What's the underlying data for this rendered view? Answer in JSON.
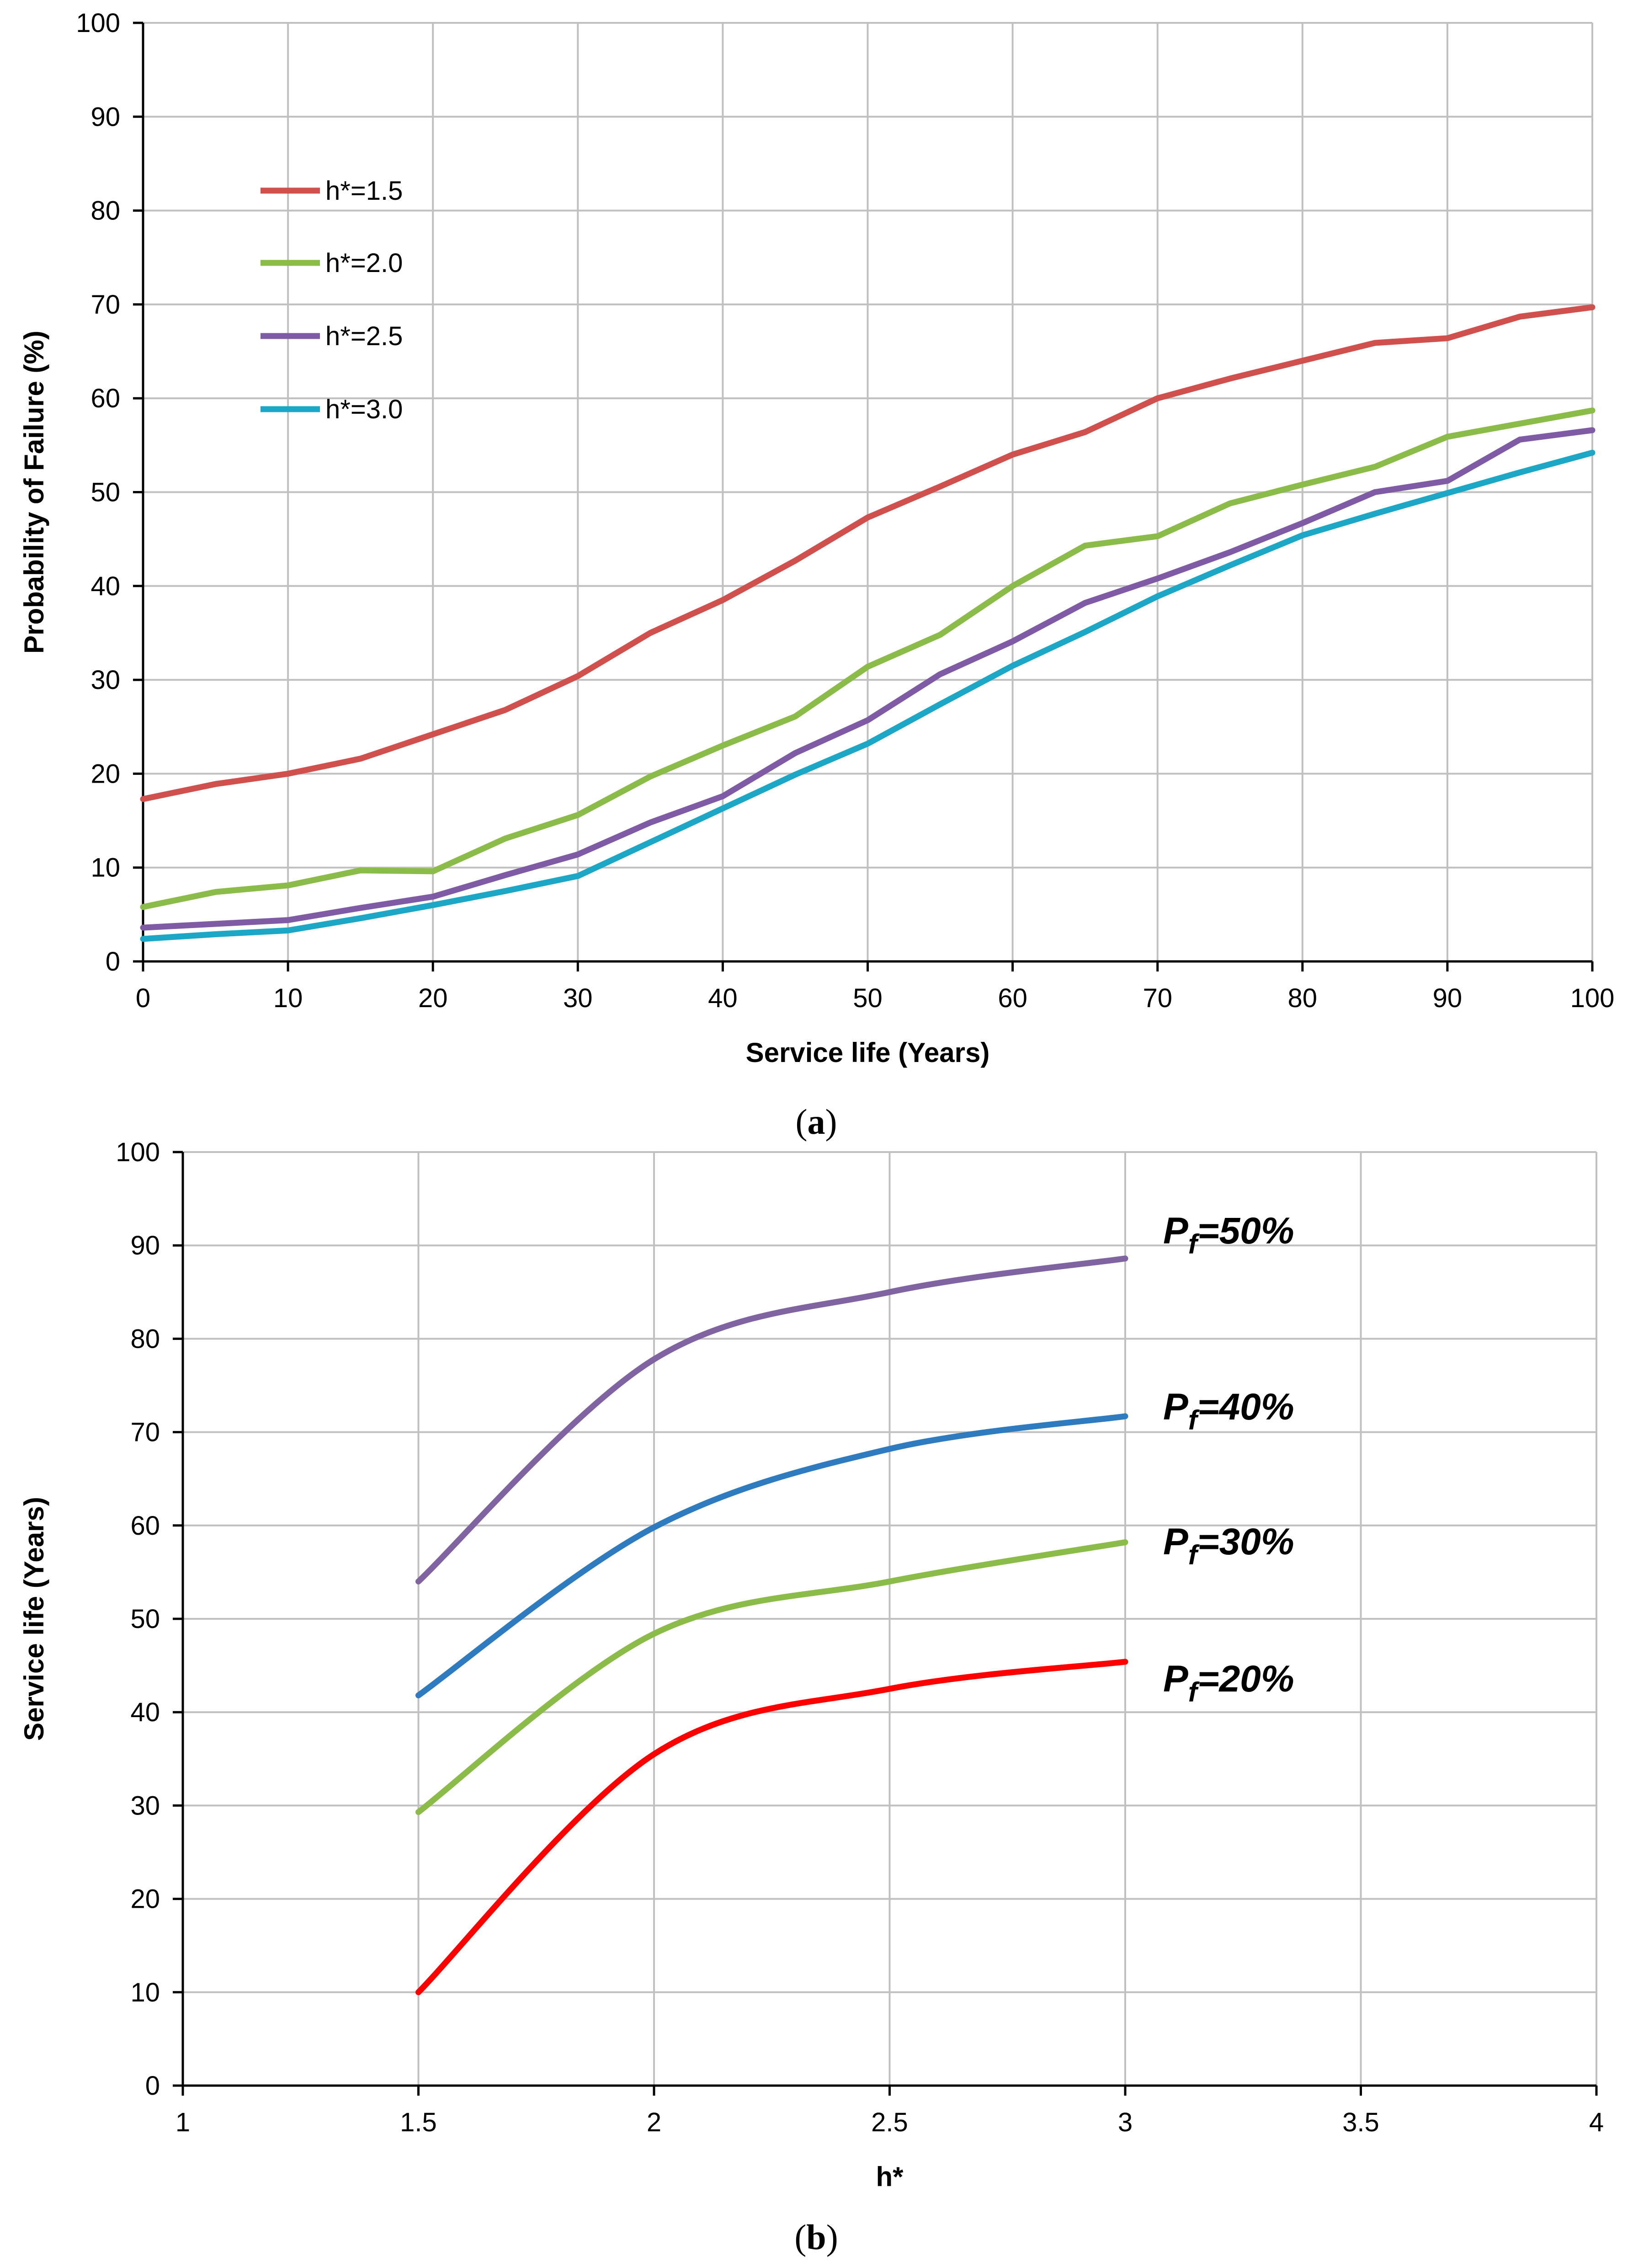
{
  "charts": [
    {
      "id": "a",
      "caption": {
        "open": "(",
        "letter": "a",
        "close": ")"
      },
      "chart_data": {
        "type": "line",
        "title": "",
        "xlabel": "Service life (Years)",
        "ylabel": "Probability of Failure (%)",
        "xlim": [
          0,
          100
        ],
        "ylim": [
          0,
          100
        ],
        "x_ticks": [
          0,
          10,
          20,
          30,
          40,
          50,
          60,
          70,
          80,
          90,
          100
        ],
        "y_ticks": [
          0,
          10,
          20,
          30,
          40,
          50,
          60,
          70,
          80,
          90,
          100
        ],
        "grid": true,
        "legend_position": "top-left",
        "x": [
          0,
          5,
          10,
          15,
          20,
          25,
          30,
          35,
          40,
          45,
          50,
          55,
          60,
          65,
          70,
          75,
          80,
          85,
          90,
          95,
          100
        ],
        "series": [
          {
            "name": "h*=1.5",
            "color": "#d0504d",
            "values": [
              17.3,
              18.9,
              20.0,
              21.6,
              24.2,
              26.8,
              30.4,
              35.0,
              38.5,
              42.7,
              47.3,
              50.6,
              54.0,
              56.4,
              60.0,
              62.1,
              64.0,
              65.9,
              66.4,
              68.7,
              69.7
            ]
          },
          {
            "name": "h*=2.0",
            "color": "#8bbb48",
            "values": [
              5.8,
              7.4,
              8.1,
              9.7,
              9.6,
              13.1,
              15.6,
              19.7,
              23.0,
              26.1,
              31.4,
              34.8,
              40.0,
              44.3,
              45.3,
              48.8,
              50.8,
              52.7,
              55.9,
              57.3,
              58.7
            ]
          },
          {
            "name": "h*=2.5",
            "color": "#7f5ba6",
            "values": [
              3.6,
              4.0,
              4.4,
              5.7,
              6.9,
              9.2,
              11.4,
              14.8,
              17.6,
              22.2,
              25.7,
              30.6,
              34.1,
              38.2,
              40.8,
              43.6,
              46.7,
              50.0,
              51.2,
              55.6,
              56.6
            ]
          },
          {
            "name": "h*=3.0",
            "color": "#1ba7c5",
            "values": [
              2.4,
              2.9,
              3.3,
              4.6,
              6.0,
              7.5,
              9.1,
              12.7,
              16.3,
              19.9,
              23.2,
              27.4,
              31.5,
              35.1,
              38.9,
              42.2,
              45.4,
              47.7,
              49.9,
              52.1,
              54.2
            ]
          }
        ]
      }
    },
    {
      "id": "b",
      "caption": {
        "open": "(",
        "letter": "b",
        "close": ")"
      },
      "chart_data": {
        "type": "line",
        "title": "",
        "xlabel": "h*",
        "ylabel": "Service life (Years)",
        "xlim": [
          1,
          4
        ],
        "ylim": [
          0,
          100
        ],
        "x_ticks": [
          1,
          1.5,
          2,
          2.5,
          3,
          3.5,
          4
        ],
        "y_ticks": [
          0,
          10,
          20,
          30,
          40,
          50,
          60,
          70,
          80,
          90,
          100
        ],
        "grid": true,
        "smooth": true,
        "x": [
          1.5,
          2.0,
          2.5,
          3.0
        ],
        "series": [
          {
            "name": "Pf=50%",
            "label_main": "P",
            "label_sub": "f",
            "label_rest": "=50%",
            "color": "#8064a2",
            "values": [
              54.0,
              77.8,
              85.0,
              88.6
            ]
          },
          {
            "name": "Pf=40%",
            "label_main": "P",
            "label_sub": "f",
            "label_rest": "=40%",
            "color": "#2e7bbf",
            "values": [
              41.8,
              59.8,
              68.2,
              71.7
            ]
          },
          {
            "name": "Pf=30%",
            "label_main": "P",
            "label_sub": "f",
            "label_rest": "=30%",
            "color": "#8bbb48",
            "values": [
              29.3,
              48.4,
              54.0,
              58.2
            ]
          },
          {
            "name": "Pf=20%",
            "label_main": "P",
            "label_sub": "f",
            "label_rest": "=20%",
            "color": "#ff0000",
            "values": [
              10.0,
              35.5,
              42.5,
              45.4
            ]
          }
        ]
      }
    }
  ]
}
